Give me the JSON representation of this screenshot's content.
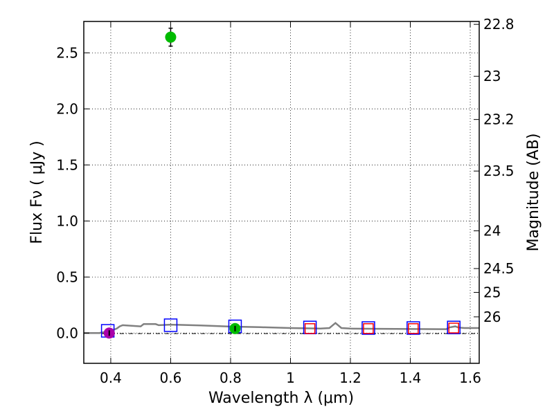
{
  "chart_data": {
    "type": "scatter",
    "title": "",
    "xlabel": "Wavelength  λ (μm)",
    "ylabel": "Flux  Fν  ( μJy )",
    "ylabel_right": "Magnitude (AB)",
    "xlim": [
      0.31,
      1.63
    ],
    "ylim": [
      -0.27,
      2.78
    ],
    "grid": true,
    "x_ticks": [
      {
        "value": 0.4,
        "label": "0.4"
      },
      {
        "value": 0.6,
        "label": "0.6"
      },
      {
        "value": 0.8,
        "label": "0.8"
      },
      {
        "value": 1.0,
        "label": "1"
      },
      {
        "value": 1.2,
        "label": "1.2"
      },
      {
        "value": 1.4,
        "label": "1.4"
      },
      {
        "value": 1.6,
        "label": "1.6"
      }
    ],
    "y_ticks": [
      {
        "value": 0.0,
        "label": "0.0"
      },
      {
        "value": 0.5,
        "label": "0.5"
      },
      {
        "value": 1.0,
        "label": "1.0"
      },
      {
        "value": 1.5,
        "label": "1.5"
      },
      {
        "value": 2.0,
        "label": "2.0"
      },
      {
        "value": 2.5,
        "label": "2.5"
      }
    ],
    "right_ticks": [
      {
        "mag": 22.8,
        "label": "22.8"
      },
      {
        "mag": 23,
        "label": "23"
      },
      {
        "mag": 23.2,
        "label": "23.2"
      },
      {
        "mag": 23.5,
        "label": "23.5"
      },
      {
        "mag": 24,
        "label": "24"
      },
      {
        "mag": 24.5,
        "label": "24.5"
      },
      {
        "mag": 25,
        "label": "25"
      },
      {
        "mag": 26,
        "label": "26"
      }
    ],
    "series": [
      {
        "name": "model-spectrum",
        "kind": "line",
        "color": "#808080",
        "x": [
          0.31,
          0.36,
          0.4,
          0.42,
          0.43,
          0.44,
          0.47,
          0.5,
          0.51,
          0.55,
          0.56,
          0.6,
          0.7,
          0.8,
          0.9,
          1.0,
          1.1,
          1.13,
          1.15,
          1.17,
          1.2,
          1.3,
          1.4,
          1.52,
          1.53,
          1.55,
          1.56,
          1.58,
          1.63
        ],
        "y": [
          0.0,
          0.0,
          0.02,
          0.04,
          0.06,
          0.07,
          0.065,
          0.06,
          0.08,
          0.08,
          0.07,
          0.075,
          0.068,
          0.058,
          0.052,
          0.045,
          0.04,
          0.045,
          0.09,
          0.045,
          0.04,
          0.038,
          0.036,
          0.035,
          0.05,
          0.06,
          0.05,
          0.045,
          0.045
        ]
      },
      {
        "name": "model-photometry",
        "kind": "open-square",
        "color": "#0000ff",
        "x": [
          0.39,
          0.6,
          0.815,
          1.065,
          1.26,
          1.41,
          1.545
        ],
        "y": [
          0.02,
          0.07,
          0.06,
          0.05,
          0.045,
          0.045,
          0.05
        ]
      },
      {
        "name": "observed-points",
        "kind": "open-square",
        "color": "#ff0000",
        "x": [
          1.065,
          1.26,
          1.41,
          1.545
        ],
        "y": [
          0.04,
          0.04,
          0.04,
          0.045
        ]
      },
      {
        "name": "detections",
        "kind": "filled-circle",
        "color": "#00bb00",
        "x": [
          0.6,
          0.815
        ],
        "y": [
          2.64,
          0.04
        ],
        "yerr": [
          0.08,
          0.01
        ]
      },
      {
        "name": "upper-limit",
        "kind": "filled-circle",
        "color": "#aa00aa",
        "x": [
          0.395
        ],
        "y": [
          0.0
        ],
        "yerr": [
          0.03
        ]
      }
    ]
  }
}
